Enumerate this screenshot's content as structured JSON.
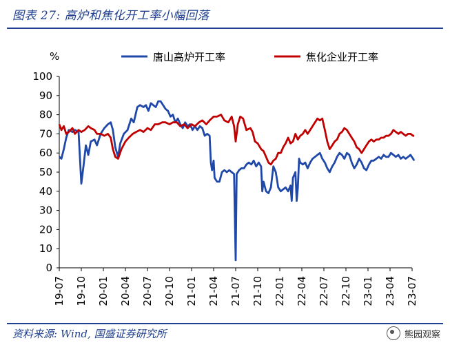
{
  "figure_title": "图表 27:  高炉和焦化开工率小幅回落",
  "source": "资料来源: Wind, 国盛证券研究所",
  "watermark": "熊园观察",
  "colors": {
    "series_blue": "#1f48a8",
    "series_red": "#c00000",
    "accent": "#1f3f8f"
  },
  "chart_data": {
    "type": "line",
    "ylabel": "%",
    "ylim": [
      0,
      100
    ],
    "yticks": [
      0,
      10,
      20,
      30,
      40,
      50,
      60,
      70,
      80,
      90,
      100
    ],
    "xlim": [
      "2019-07",
      "2023-07"
    ],
    "xticks": [
      "19-07",
      "19-10",
      "20-01",
      "20-04",
      "20-07",
      "20-10",
      "21-01",
      "21-04",
      "21-07",
      "21-10",
      "22-01",
      "22-04",
      "22-07",
      "22-10",
      "23-01",
      "23-04",
      "23-07"
    ],
    "grid": false,
    "legend_position": "top",
    "series": [
      {
        "name": "唐山高炉开工率",
        "color": "#1f48a8",
        "points": [
          [
            "2019-07-01",
            58
          ],
          [
            "2019-07-10",
            57
          ],
          [
            "2019-07-20",
            62
          ],
          [
            "2019-07-30",
            68
          ],
          [
            "2019-08-10",
            72
          ],
          [
            "2019-08-25",
            71
          ],
          [
            "2019-09-05",
            72
          ],
          [
            "2019-09-20",
            71
          ],
          [
            "2019-10-01",
            44
          ],
          [
            "2019-10-10",
            53
          ],
          [
            "2019-10-20",
            64
          ],
          [
            "2019-10-30",
            59
          ],
          [
            "2019-11-10",
            66
          ],
          [
            "2019-11-25",
            67
          ],
          [
            "2019-12-05",
            64
          ],
          [
            "2019-12-20",
            70
          ],
          [
            "2020-01-05",
            73
          ],
          [
            "2020-01-20",
            75
          ],
          [
            "2020-02-01",
            76
          ],
          [
            "2020-02-10",
            72
          ],
          [
            "2020-02-20",
            63
          ],
          [
            "2020-03-01",
            58
          ],
          [
            "2020-03-10",
            65
          ],
          [
            "2020-03-25",
            70
          ],
          [
            "2020-04-10",
            72
          ],
          [
            "2020-04-25",
            78
          ],
          [
            "2020-05-05",
            76
          ],
          [
            "2020-05-20",
            84
          ],
          [
            "2020-06-01",
            85
          ],
          [
            "2020-06-15",
            84
          ],
          [
            "2020-06-25",
            85
          ],
          [
            "2020-07-05",
            82
          ],
          [
            "2020-07-15",
            86
          ],
          [
            "2020-07-25",
            85
          ],
          [
            "2020-08-05",
            84
          ],
          [
            "2020-08-15",
            87
          ],
          [
            "2020-08-25",
            87
          ],
          [
            "2020-09-05",
            85
          ],
          [
            "2020-09-15",
            83
          ],
          [
            "2020-09-25",
            82
          ],
          [
            "2020-10-05",
            79
          ],
          [
            "2020-10-15",
            80
          ],
          [
            "2020-10-25",
            76
          ],
          [
            "2020-11-05",
            78
          ],
          [
            "2020-11-15",
            75
          ],
          [
            "2020-11-25",
            73
          ],
          [
            "2020-12-05",
            76
          ],
          [
            "2020-12-15",
            74
          ],
          [
            "2020-12-25",
            75
          ],
          [
            "2021-01-05",
            72
          ],
          [
            "2021-01-15",
            74
          ],
          [
            "2021-01-25",
            72
          ],
          [
            "2021-02-05",
            74
          ],
          [
            "2021-02-15",
            73
          ],
          [
            "2021-02-25",
            69
          ],
          [
            "2021-03-05",
            70
          ],
          [
            "2021-03-15",
            69
          ],
          [
            "2021-03-20",
            55
          ],
          [
            "2021-03-25",
            51
          ],
          [
            "2021-04-01",
            56
          ],
          [
            "2021-04-05",
            47
          ],
          [
            "2021-04-15",
            45
          ],
          [
            "2021-04-25",
            45
          ],
          [
            "2021-05-05",
            50
          ],
          [
            "2021-05-15",
            51
          ],
          [
            "2021-05-25",
            50
          ],
          [
            "2021-06-05",
            51
          ],
          [
            "2021-06-15",
            50
          ],
          [
            "2021-06-25",
            49
          ],
          [
            "2021-07-01",
            4
          ],
          [
            "2021-07-05",
            49
          ],
          [
            "2021-07-15",
            51
          ],
          [
            "2021-07-25",
            52
          ],
          [
            "2021-08-05",
            52
          ],
          [
            "2021-08-15",
            54
          ],
          [
            "2021-08-25",
            55
          ],
          [
            "2021-09-05",
            54
          ],
          [
            "2021-09-15",
            56
          ],
          [
            "2021-09-25",
            53
          ],
          [
            "2021-10-05",
            55
          ],
          [
            "2021-10-15",
            53
          ],
          [
            "2021-10-20",
            40
          ],
          [
            "2021-10-25",
            45
          ],
          [
            "2021-11-05",
            40
          ],
          [
            "2021-11-15",
            39
          ],
          [
            "2021-11-25",
            42
          ],
          [
            "2021-12-05",
            53
          ],
          [
            "2021-12-15",
            50
          ],
          [
            "2021-12-25",
            42
          ],
          [
            "2022-01-05",
            40
          ],
          [
            "2022-01-15",
            41
          ],
          [
            "2022-01-25",
            42
          ],
          [
            "2022-02-05",
            40
          ],
          [
            "2022-02-15",
            43
          ],
          [
            "2022-02-20",
            35
          ],
          [
            "2022-02-25",
            47
          ],
          [
            "2022-03-05",
            50
          ],
          [
            "2022-03-10",
            35
          ],
          [
            "2022-03-15",
            42
          ],
          [
            "2022-03-20",
            57
          ],
          [
            "2022-03-25",
            55
          ],
          [
            "2022-04-05",
            54
          ],
          [
            "2022-04-15",
            55
          ],
          [
            "2022-04-25",
            52
          ],
          [
            "2022-05-05",
            55
          ],
          [
            "2022-05-15",
            57
          ],
          [
            "2022-05-25",
            58
          ],
          [
            "2022-06-05",
            59
          ],
          [
            "2022-06-15",
            60
          ],
          [
            "2022-06-25",
            57
          ],
          [
            "2022-07-05",
            55
          ],
          [
            "2022-07-15",
            52
          ],
          [
            "2022-07-25",
            50
          ],
          [
            "2022-08-05",
            53
          ],
          [
            "2022-08-15",
            55
          ],
          [
            "2022-08-25",
            58
          ],
          [
            "2022-09-05",
            60
          ],
          [
            "2022-09-15",
            59
          ],
          [
            "2022-09-25",
            57
          ],
          [
            "2022-10-05",
            60
          ],
          [
            "2022-10-15",
            59
          ],
          [
            "2022-10-25",
            55
          ],
          [
            "2022-11-05",
            52
          ],
          [
            "2022-11-15",
            54
          ],
          [
            "2022-11-25",
            57
          ],
          [
            "2022-12-05",
            55
          ],
          [
            "2022-12-15",
            52
          ],
          [
            "2022-12-25",
            51
          ],
          [
            "2023-01-05",
            54
          ],
          [
            "2023-01-15",
            56
          ],
          [
            "2023-01-25",
            56
          ],
          [
            "2023-02-05",
            57
          ],
          [
            "2023-02-15",
            58
          ],
          [
            "2023-02-25",
            57
          ],
          [
            "2023-03-05",
            59
          ],
          [
            "2023-03-15",
            58
          ],
          [
            "2023-03-25",
            58
          ],
          [
            "2023-04-05",
            60
          ],
          [
            "2023-04-15",
            59
          ],
          [
            "2023-04-25",
            58
          ],
          [
            "2023-05-05",
            59
          ],
          [
            "2023-05-15",
            57
          ],
          [
            "2023-05-25",
            58
          ],
          [
            "2023-06-05",
            57
          ],
          [
            "2023-06-15",
            58
          ],
          [
            "2023-06-25",
            59
          ],
          [
            "2023-07-05",
            57
          ],
          [
            "2023-07-10",
            56
          ]
        ]
      },
      {
        "name": "焦化企业开工率",
        "color": "#c00000",
        "points": [
          [
            "2019-07-01",
            75
          ],
          [
            "2019-07-10",
            72
          ],
          [
            "2019-07-20",
            74
          ],
          [
            "2019-07-30",
            70
          ],
          [
            "2019-08-10",
            71
          ],
          [
            "2019-08-25",
            73
          ],
          [
            "2019-09-05",
            70
          ],
          [
            "2019-09-20",
            72
          ],
          [
            "2019-10-01",
            71
          ],
          [
            "2019-10-15",
            72
          ],
          [
            "2019-10-30",
            74
          ],
          [
            "2019-11-10",
            73
          ],
          [
            "2019-11-25",
            72
          ],
          [
            "2019-12-05",
            70
          ],
          [
            "2019-12-20",
            70
          ],
          [
            "2020-01-05",
            69
          ],
          [
            "2020-01-20",
            70
          ],
          [
            "2020-02-01",
            68
          ],
          [
            "2020-02-10",
            62
          ],
          [
            "2020-02-20",
            58
          ],
          [
            "2020-03-01",
            57
          ],
          [
            "2020-03-15",
            62
          ],
          [
            "2020-04-01",
            66
          ],
          [
            "2020-04-15",
            68
          ],
          [
            "2020-05-01",
            70
          ],
          [
            "2020-05-15",
            71
          ],
          [
            "2020-06-01",
            72
          ],
          [
            "2020-06-15",
            71
          ],
          [
            "2020-07-01",
            73
          ],
          [
            "2020-07-15",
            72
          ],
          [
            "2020-08-01",
            75
          ],
          [
            "2020-08-15",
            75
          ],
          [
            "2020-09-01",
            76
          ],
          [
            "2020-09-15",
            76
          ],
          [
            "2020-10-01",
            75
          ],
          [
            "2020-10-15",
            76
          ],
          [
            "2020-11-01",
            76
          ],
          [
            "2020-11-15",
            74
          ],
          [
            "2020-12-01",
            75
          ],
          [
            "2020-12-15",
            73
          ],
          [
            "2021-01-01",
            75
          ],
          [
            "2021-01-15",
            74
          ],
          [
            "2021-02-01",
            76
          ],
          [
            "2021-02-15",
            77
          ],
          [
            "2021-03-01",
            75
          ],
          [
            "2021-03-15",
            77
          ],
          [
            "2021-04-01",
            79
          ],
          [
            "2021-04-15",
            79
          ],
          [
            "2021-05-01",
            80
          ],
          [
            "2021-05-15",
            77
          ],
          [
            "2021-06-01",
            76
          ],
          [
            "2021-06-15",
            79
          ],
          [
            "2021-06-25",
            74
          ],
          [
            "2021-07-01",
            66
          ],
          [
            "2021-07-10",
            75
          ],
          [
            "2021-07-20",
            79
          ],
          [
            "2021-08-01",
            78
          ],
          [
            "2021-08-15",
            72
          ],
          [
            "2021-09-01",
            73
          ],
          [
            "2021-09-10",
            71
          ],
          [
            "2021-09-20",
            66
          ],
          [
            "2021-10-01",
            65
          ],
          [
            "2021-10-15",
            62
          ],
          [
            "2021-10-25",
            61
          ],
          [
            "2021-11-05",
            58
          ],
          [
            "2021-11-15",
            55
          ],
          [
            "2021-11-25",
            54
          ],
          [
            "2021-12-05",
            56
          ],
          [
            "2021-12-15",
            57
          ],
          [
            "2021-12-25",
            60
          ],
          [
            "2022-01-05",
            60
          ],
          [
            "2022-01-15",
            63
          ],
          [
            "2022-01-25",
            65
          ],
          [
            "2022-02-05",
            68
          ],
          [
            "2022-02-15",
            65
          ],
          [
            "2022-02-25",
            66
          ],
          [
            "2022-03-05",
            70
          ],
          [
            "2022-03-15",
            67
          ],
          [
            "2022-03-25",
            69
          ],
          [
            "2022-04-05",
            70
          ],
          [
            "2022-04-15",
            72
          ],
          [
            "2022-04-25",
            70
          ],
          [
            "2022-05-05",
            72
          ],
          [
            "2022-05-15",
            74
          ],
          [
            "2022-05-25",
            76
          ],
          [
            "2022-06-05",
            78
          ],
          [
            "2022-06-15",
            77
          ],
          [
            "2022-06-25",
            78
          ],
          [
            "2022-07-05",
            72
          ],
          [
            "2022-07-15",
            66
          ],
          [
            "2022-07-25",
            62
          ],
          [
            "2022-08-05",
            64
          ],
          [
            "2022-08-15",
            66
          ],
          [
            "2022-08-25",
            67
          ],
          [
            "2022-09-05",
            70
          ],
          [
            "2022-09-15",
            71
          ],
          [
            "2022-09-25",
            73
          ],
          [
            "2022-10-05",
            72
          ],
          [
            "2022-10-15",
            70
          ],
          [
            "2022-10-25",
            68
          ],
          [
            "2022-11-05",
            66
          ],
          [
            "2022-11-15",
            63
          ],
          [
            "2022-11-25",
            62
          ],
          [
            "2022-12-05",
            60
          ],
          [
            "2022-12-15",
            62
          ],
          [
            "2022-12-25",
            64
          ],
          [
            "2023-01-05",
            66
          ],
          [
            "2023-01-15",
            67
          ],
          [
            "2023-01-25",
            66
          ],
          [
            "2023-02-05",
            67
          ],
          [
            "2023-02-15",
            67
          ],
          [
            "2023-02-25",
            68
          ],
          [
            "2023-03-05",
            68
          ],
          [
            "2023-03-15",
            69
          ],
          [
            "2023-03-25",
            69
          ],
          [
            "2023-04-05",
            70
          ],
          [
            "2023-04-15",
            72
          ],
          [
            "2023-04-25",
            71
          ],
          [
            "2023-05-05",
            70
          ],
          [
            "2023-05-15",
            71
          ],
          [
            "2023-05-25",
            70
          ],
          [
            "2023-06-05",
            69
          ],
          [
            "2023-06-15",
            70
          ],
          [
            "2023-06-25",
            70
          ],
          [
            "2023-07-05",
            69
          ],
          [
            "2023-07-10",
            69
          ]
        ]
      }
    ]
  }
}
